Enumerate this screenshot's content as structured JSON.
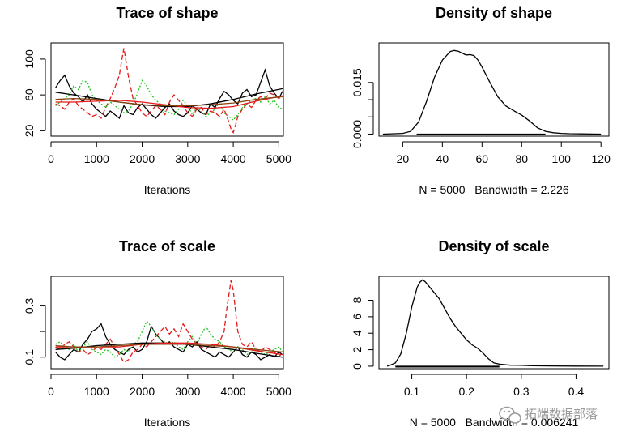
{
  "chart_data": [
    {
      "type": "line",
      "title": "Trace of shape",
      "xlabel": "Iterations",
      "ylabel": "",
      "xlim": [
        0,
        5100
      ],
      "ylim": [
        14,
        118
      ],
      "xticks": [
        0,
        1000,
        2000,
        3000,
        4000,
        5000
      ],
      "yticks": [
        20,
        60,
        100
      ],
      "grid": false,
      "legend": "none",
      "series": [
        {
          "color": "#000000",
          "dash": "solid",
          "x": [
            100,
            200,
            300,
            400,
            500,
            600,
            700,
            800,
            900,
            1000,
            1100,
            1200,
            1300,
            1400,
            1500,
            1600,
            1700,
            1800,
            1900,
            2000,
            2100,
            2200,
            2300,
            2400,
            2500,
            2600,
            2700,
            2800,
            2900,
            3000,
            3100,
            3200,
            3300,
            3400,
            3500,
            3600,
            3700,
            3800,
            3900,
            4000,
            4100,
            4200,
            4300,
            4400,
            4500,
            4600,
            4700,
            4800,
            4900,
            5000,
            5080
          ],
          "y": [
            68,
            76,
            82,
            70,
            62,
            58,
            52,
            60,
            50,
            44,
            40,
            36,
            42,
            38,
            34,
            48,
            40,
            38,
            46,
            50,
            44,
            38,
            34,
            40,
            46,
            50,
            42,
            38,
            36,
            40,
            48,
            44,
            40,
            38,
            50,
            46,
            56,
            64,
            60,
            54,
            50,
            62,
            66,
            58,
            60,
            74,
            88,
            70,
            62,
            56,
            64
          ]
        },
        {
          "color": "#e41a1c",
          "dash": "dashed",
          "x": [
            100,
            200,
            300,
            400,
            500,
            600,
            700,
            800,
            900,
            1000,
            1100,
            1200,
            1300,
            1400,
            1500,
            1550,
            1600,
            1650,
            1700,
            1800,
            1900,
            2000,
            2100,
            2200,
            2300,
            2400,
            2500,
            2600,
            2700,
            2800,
            2900,
            3000,
            3100,
            3200,
            3300,
            3400,
            3500,
            3600,
            3700,
            3800,
            3900,
            3950,
            4000,
            4050,
            4100,
            4200,
            4300,
            4400,
            4500,
            4600,
            4700,
            4800,
            4900,
            5000,
            5080
          ],
          "y": [
            50,
            48,
            44,
            52,
            56,
            48,
            44,
            40,
            36,
            38,
            34,
            46,
            56,
            68,
            82,
            98,
            112,
            96,
            80,
            56,
            48,
            40,
            36,
            42,
            48,
            44,
            38,
            52,
            60,
            54,
            48,
            40,
            36,
            44,
            46,
            38,
            42,
            40,
            36,
            44,
            30,
            22,
            18,
            26,
            36,
            44,
            50,
            46,
            54,
            58,
            56,
            62,
            60,
            56,
            58
          ]
        },
        {
          "color": "#22c322",
          "dash": "dotted",
          "x": [
            100,
            200,
            300,
            400,
            500,
            600,
            700,
            800,
            900,
            1000,
            1100,
            1200,
            1300,
            1400,
            1500,
            1600,
            1700,
            1800,
            1900,
            2000,
            2100,
            2200,
            2300,
            2400,
            2500,
            2600,
            2700,
            2800,
            2900,
            3000,
            3100,
            3200,
            3300,
            3400,
            3500,
            3600,
            3700,
            3800,
            3900,
            4000,
            4100,
            4200,
            4300,
            4400,
            4500,
            4600,
            4700,
            4800,
            4900,
            5000,
            5080
          ],
          "y": [
            48,
            52,
            56,
            60,
            70,
            66,
            76,
            74,
            60,
            54,
            50,
            46,
            52,
            48,
            44,
            40,
            42,
            50,
            62,
            76,
            70,
            60,
            54,
            50,
            42,
            40,
            38,
            44,
            54,
            48,
            38,
            46,
            42,
            36,
            40,
            44,
            52,
            40,
            36,
            32,
            38,
            46,
            50,
            54,
            56,
            52,
            58,
            50,
            54,
            46,
            44
          ]
        },
        {
          "color": "#000000",
          "dash": "solid",
          "x": [
            100,
            500,
            1000,
            1500,
            2000,
            2500,
            3000,
            3500,
            4000,
            4500,
            5080
          ],
          "y": [
            63,
            60,
            56,
            52,
            49,
            47,
            47,
            50,
            55,
            61,
            67
          ]
        },
        {
          "color": "#e41a1c",
          "dash": "solid",
          "x": [
            100,
            500,
            1000,
            1500,
            2000,
            2500,
            3000,
            3500,
            4000,
            4500,
            5080
          ],
          "y": [
            52,
            52,
            53,
            54,
            52,
            49,
            46,
            45,
            47,
            53,
            59
          ]
        },
        {
          "color": "#8b4513",
          "dash": "solid",
          "x": [
            100,
            500,
            1000,
            1500,
            2000,
            2500,
            3000,
            3500,
            4000,
            4500,
            5080
          ],
          "y": [
            55,
            56,
            55,
            52,
            49,
            48,
            48,
            49,
            51,
            55,
            58
          ]
        }
      ]
    },
    {
      "type": "line",
      "title": "Density of shape",
      "xlabel": "N = 5000   Bandwidth = 2.226",
      "ylabel": "",
      "xlim": [
        8,
        124
      ],
      "ylim": [
        -0.0006,
        0.0265
      ],
      "xticks": [
        20,
        40,
        60,
        80,
        100,
        120
      ],
      "yticks": [
        0,
        0.005,
        0.01,
        0.015
      ],
      "ytick_labels": [
        "0.000",
        "",
        "",
        "0.015"
      ],
      "grid": false,
      "legend": "none",
      "rug": [
        27,
        92
      ],
      "series": [
        {
          "color": "#000000",
          "dash": "solid",
          "x": [
            10,
            16,
            20,
            24,
            28,
            32,
            36,
            40,
            44,
            46,
            48,
            50,
            52,
            54,
            56,
            58,
            60,
            64,
            68,
            72,
            76,
            80,
            84,
            88,
            92,
            96,
            100,
            104,
            110,
            116,
            120
          ],
          "y": [
            0,
            0.0001,
            0.0002,
            0.0008,
            0.0035,
            0.0095,
            0.0165,
            0.0215,
            0.024,
            0.0243,
            0.0241,
            0.0235,
            0.023,
            0.0231,
            0.0228,
            0.0215,
            0.0195,
            0.015,
            0.0108,
            0.0082,
            0.0068,
            0.0055,
            0.0038,
            0.0018,
            0.0008,
            0.0004,
            0.0002,
            0.0001,
            5e-05,
            2e-05,
            0
          ]
        }
      ]
    },
    {
      "type": "line",
      "title": "Trace of scale",
      "xlabel": "Iterations",
      "ylabel": "",
      "xlim": [
        0,
        5100
      ],
      "ylim": [
        0.055,
        0.415
      ],
      "xticks": [
        0,
        1000,
        2000,
        3000,
        4000,
        5000
      ],
      "yticks": [
        0.1,
        0.2,
        0.3
      ],
      "ytick_labels": [
        "0.1",
        "",
        "0.3"
      ],
      "grid": false,
      "legend": "none",
      "series": [
        {
          "color": "#000000",
          "dash": "solid",
          "x": [
            100,
            200,
            300,
            400,
            500,
            600,
            700,
            800,
            900,
            1000,
            1100,
            1200,
            1300,
            1400,
            1500,
            1600,
            1700,
            1800,
            1900,
            2000,
            2100,
            2200,
            2300,
            2400,
            2500,
            2600,
            2700,
            2800,
            2900,
            3000,
            3100,
            3200,
            3300,
            3400,
            3500,
            3600,
            3700,
            3800,
            3900,
            4000,
            4100,
            4200,
            4300,
            4400,
            4500,
            4600,
            4700,
            4800,
            4900,
            5000,
            5080
          ],
          "y": [
            0.12,
            0.1,
            0.09,
            0.11,
            0.13,
            0.12,
            0.15,
            0.17,
            0.2,
            0.21,
            0.23,
            0.18,
            0.15,
            0.13,
            0.12,
            0.11,
            0.13,
            0.14,
            0.12,
            0.13,
            0.16,
            0.22,
            0.19,
            0.17,
            0.15,
            0.16,
            0.14,
            0.13,
            0.12,
            0.15,
            0.14,
            0.16,
            0.13,
            0.12,
            0.11,
            0.1,
            0.12,
            0.11,
            0.1,
            0.12,
            0.14,
            0.11,
            0.1,
            0.12,
            0.11,
            0.09,
            0.1,
            0.11,
            0.1,
            0.12,
            0.11
          ]
        },
        {
          "color": "#e41a1c",
          "dash": "dashed",
          "x": [
            100,
            200,
            300,
            400,
            500,
            600,
            700,
            800,
            900,
            1000,
            1100,
            1200,
            1300,
            1400,
            1500,
            1600,
            1700,
            1800,
            1900,
            2000,
            2100,
            2200,
            2300,
            2400,
            2500,
            2600,
            2700,
            2800,
            2900,
            3000,
            3100,
            3200,
            3300,
            3400,
            3500,
            3600,
            3700,
            3800,
            3850,
            3900,
            3950,
            4000,
            4050,
            4100,
            4200,
            4300,
            4400,
            4500,
            4600,
            4700,
            4800,
            4900,
            5000,
            5080
          ],
          "y": [
            0.14,
            0.13,
            0.15,
            0.16,
            0.14,
            0.12,
            0.13,
            0.11,
            0.12,
            0.14,
            0.13,
            0.15,
            0.17,
            0.14,
            0.11,
            0.08,
            0.09,
            0.12,
            0.13,
            0.15,
            0.14,
            0.16,
            0.18,
            0.2,
            0.22,
            0.19,
            0.21,
            0.18,
            0.23,
            0.2,
            0.17,
            0.15,
            0.14,
            0.13,
            0.15,
            0.14,
            0.16,
            0.2,
            0.28,
            0.34,
            0.4,
            0.36,
            0.28,
            0.2,
            0.15,
            0.14,
            0.16,
            0.13,
            0.12,
            0.14,
            0.13,
            0.12,
            0.1,
            0.12
          ]
        },
        {
          "color": "#22c322",
          "dash": "dotted",
          "x": [
            100,
            200,
            300,
            400,
            500,
            600,
            700,
            800,
            900,
            1000,
            1100,
            1200,
            1300,
            1400,
            1500,
            1600,
            1700,
            1800,
            1900,
            2000,
            2100,
            2200,
            2300,
            2400,
            2500,
            2600,
            2700,
            2800,
            2900,
            3000,
            3100,
            3200,
            3300,
            3400,
            3500,
            3600,
            3700,
            3800,
            3900,
            4000,
            4100,
            4200,
            4300,
            4400,
            4500,
            4600,
            4700,
            4800,
            4900,
            5000,
            5080
          ],
          "y": [
            0.15,
            0.16,
            0.14,
            0.13,
            0.15,
            0.12,
            0.14,
            0.16,
            0.13,
            0.12,
            0.11,
            0.13,
            0.12,
            0.1,
            0.11,
            0.13,
            0.12,
            0.15,
            0.16,
            0.2,
            0.24,
            0.22,
            0.19,
            0.17,
            0.16,
            0.15,
            0.16,
            0.14,
            0.13,
            0.16,
            0.18,
            0.15,
            0.19,
            0.22,
            0.19,
            0.17,
            0.16,
            0.14,
            0.13,
            0.12,
            0.14,
            0.13,
            0.11,
            0.12,
            0.14,
            0.12,
            0.11,
            0.12,
            0.13,
            0.14,
            0.12
          ]
        },
        {
          "color": "#000000",
          "dash": "solid",
          "x": [
            100,
            500,
            1000,
            1500,
            2000,
            2500,
            3000,
            3500,
            4000,
            4500,
            5080
          ],
          "y": [
            0.13,
            0.135,
            0.145,
            0.15,
            0.155,
            0.155,
            0.15,
            0.14,
            0.13,
            0.115,
            0.1
          ]
        },
        {
          "color": "#e41a1c",
          "dash": "solid",
          "x": [
            100,
            500,
            1000,
            1500,
            2000,
            2500,
            3000,
            3500,
            4000,
            4500,
            5080
          ],
          "y": [
            0.14,
            0.14,
            0.14,
            0.14,
            0.15,
            0.155,
            0.155,
            0.15,
            0.14,
            0.125,
            0.11
          ]
        },
        {
          "color": "#8b4513",
          "dash": "solid",
          "x": [
            100,
            500,
            1000,
            1500,
            2000,
            2500,
            3000,
            3500,
            4000,
            4500,
            5080
          ],
          "y": [
            0.145,
            0.14,
            0.14,
            0.145,
            0.15,
            0.15,
            0.15,
            0.145,
            0.14,
            0.13,
            0.12
          ]
        }
      ]
    },
    {
      "type": "line",
      "title": "Density of scale",
      "xlabel": "N = 5000   Bandwidth = 0.006241",
      "ylabel": "",
      "xlim": [
        0.04,
        0.46
      ],
      "ylim": [
        -0.3,
        10.9
      ],
      "xticks": [
        0.1,
        0.2,
        0.3,
        0.4
      ],
      "yticks": [
        0,
        2,
        4,
        6,
        8
      ],
      "grid": false,
      "legend": "none",
      "rug": [
        0.07,
        0.26
      ],
      "series": [
        {
          "color": "#000000",
          "dash": "solid",
          "x": [
            0.055,
            0.06,
            0.07,
            0.08,
            0.09,
            0.1,
            0.11,
            0.115,
            0.12,
            0.125,
            0.13,
            0.14,
            0.15,
            0.16,
            0.17,
            0.18,
            0.19,
            0.2,
            0.21,
            0.22,
            0.23,
            0.24,
            0.25,
            0.26,
            0.28,
            0.3,
            0.32,
            0.35,
            0.4,
            0.45
          ],
          "y": [
            0,
            0.1,
            0.4,
            1.5,
            4.0,
            7.2,
            9.6,
            10.2,
            10.5,
            10.2,
            9.8,
            9.0,
            8.2,
            7.0,
            5.8,
            4.8,
            4.0,
            3.2,
            2.6,
            2.2,
            1.6,
            0.9,
            0.4,
            0.25,
            0.12,
            0.1,
            0.06,
            0.03,
            0.01,
            0
          ]
        }
      ]
    }
  ],
  "watermark": "拓端数据部落"
}
